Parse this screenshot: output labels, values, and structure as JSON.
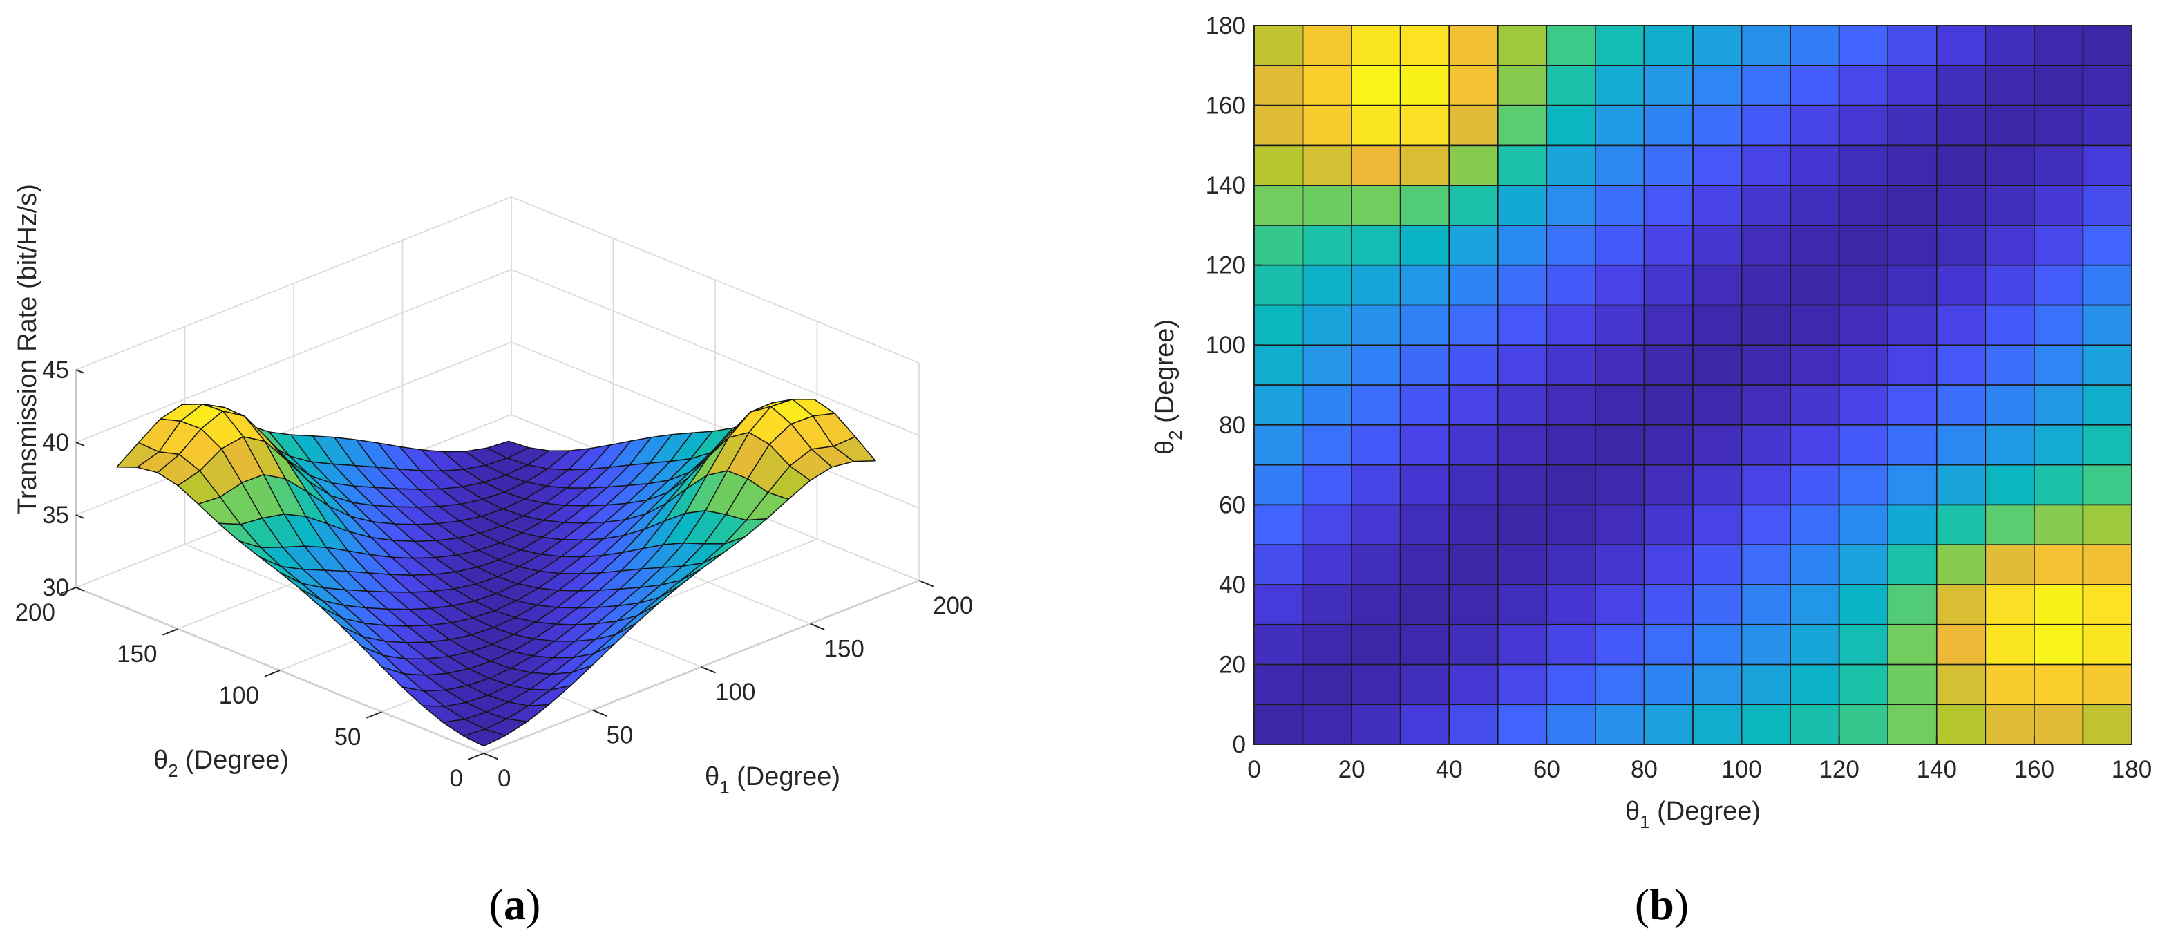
{
  "chart_data": [
    {
      "type": "surface",
      "panel_label": "a",
      "xlabel": "θ1 (Degree)",
      "ylabel": "θ2 (Degree)",
      "zlabel": "Transmission Rate (bit/Hz/s)",
      "xlim": [
        0,
        200
      ],
      "ylim": [
        0,
        200
      ],
      "zlim": [
        30,
        45
      ],
      "xticks": [
        "0",
        "50",
        "100",
        "150",
        "200"
      ],
      "yticks": [
        "0",
        "50",
        "100",
        "150",
        "200"
      ],
      "zticks": [
        "30",
        "35",
        "40",
        "45"
      ],
      "grid_values": [
        0,
        10,
        20,
        30,
        40,
        50,
        60,
        70,
        80,
        90,
        100,
        110,
        120,
        130,
        140,
        150,
        160,
        170,
        180
      ],
      "model": "Transmission rate is highest near (θ1,θ2)≈(30,160) and (160,30) at ≈42.5 bit/Hz/s, and lowest along the diagonal θ1≈θ2 at ≈30.5 bit/Hz/s",
      "colormap": "parula"
    },
    {
      "type": "heatmap",
      "panel_label": "b",
      "xlabel": "θ1 (Degree)",
      "ylabel": "θ2 (Degree)",
      "xlim": [
        0,
        180
      ],
      "ylim": [
        0,
        180
      ],
      "xticks": [
        "0",
        "20",
        "40",
        "60",
        "80",
        "100",
        "120",
        "140",
        "160",
        "180"
      ],
      "yticks": [
        "0",
        "20",
        "40",
        "60",
        "80",
        "100",
        "120",
        "140",
        "160",
        "180"
      ],
      "x_centers": [
        5,
        15,
        25,
        35,
        45,
        55,
        65,
        75,
        85,
        95,
        105,
        115,
        125,
        135,
        145,
        155,
        165,
        175
      ],
      "y_centers": [
        5,
        15,
        25,
        35,
        45,
        55,
        65,
        75,
        85,
        95,
        105,
        115,
        125,
        135,
        145,
        155,
        165,
        175
      ],
      "peaks": [
        {
          "theta1": 30,
          "theta2": 160,
          "value": 42.5
        },
        {
          "theta1": 160,
          "theta2": 30,
          "value": 42.5
        }
      ],
      "min_value": 30.5,
      "colormap": "parula"
    }
  ]
}
